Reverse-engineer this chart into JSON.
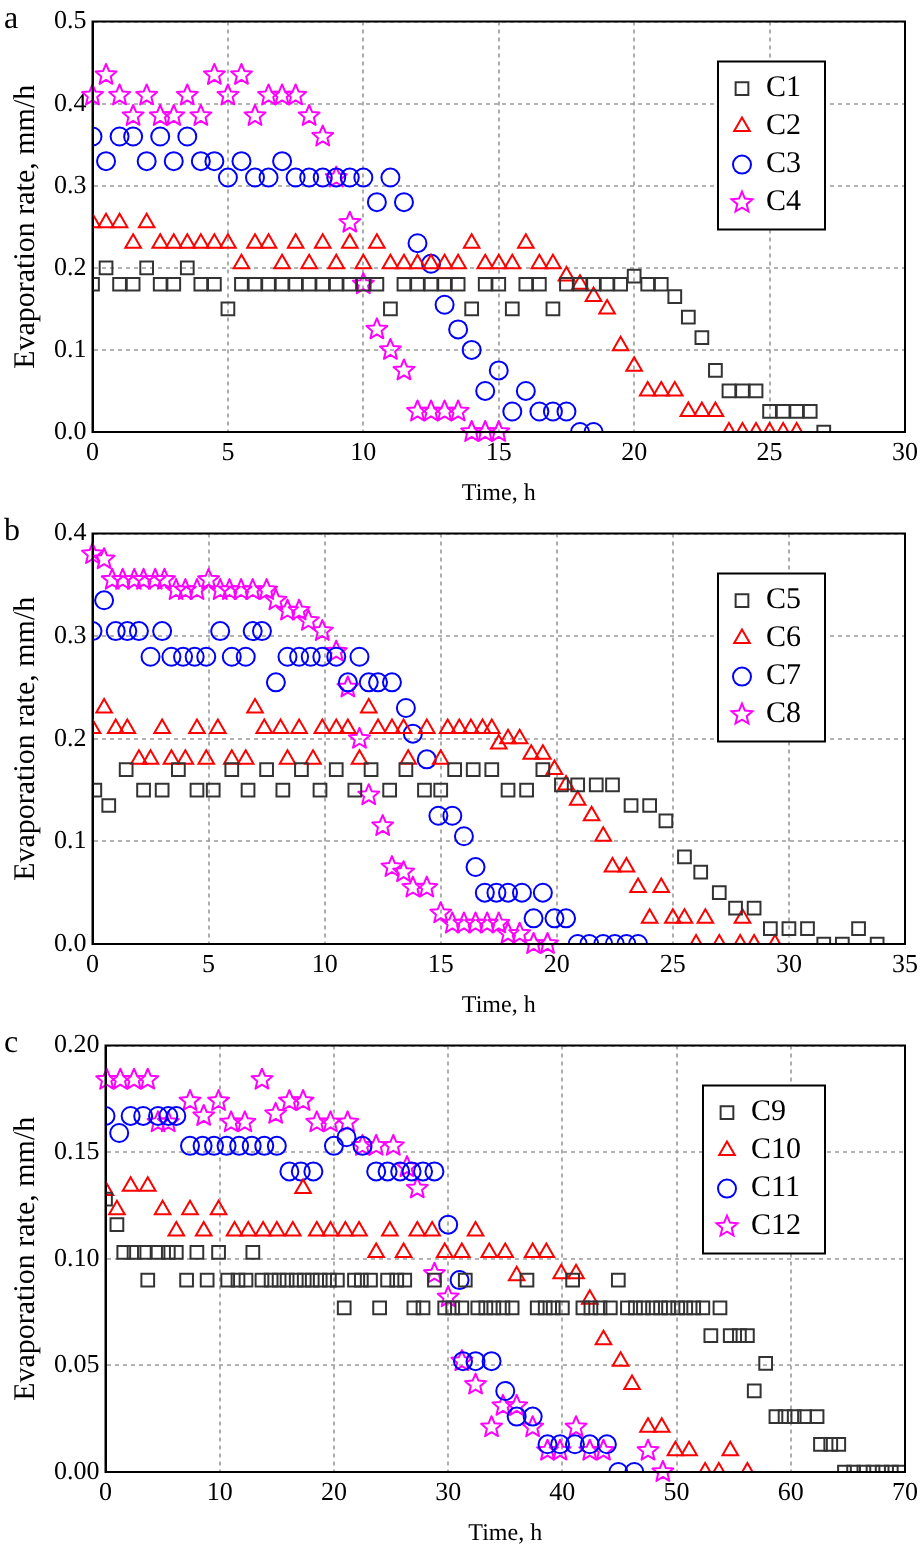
{
  "chart_data": [
    {
      "type": "scatter",
      "annotations": [
        "a"
      ],
      "xlabel": "Time, h",
      "ylabel": "Evaporation rate, mm/h",
      "xlim": [
        0,
        30
      ],
      "xticks": [
        0,
        5,
        10,
        15,
        20,
        25,
        30
      ],
      "ylim": [
        0,
        0.5
      ],
      "yticks": [
        {
          "value": 0,
          "label": "0.0"
        },
        {
          "value": 0.1,
          "label": "0.1"
        },
        {
          "value": 0.2,
          "label": "0.2"
        },
        {
          "value": 0.3,
          "label": "0.3"
        },
        {
          "value": 0.4,
          "label": "0.4"
        },
        {
          "value": 0.5,
          "label": "0.5"
        }
      ],
      "grid": true,
      "legend": "top right",
      "series": [
        {
          "name": "C1",
          "color": "#333333",
          "marker": "square",
          "x": [
            0,
            0.5,
            1,
            1.5,
            2,
            2.5,
            3,
            3.5,
            4,
            4.5,
            5,
            5.5,
            6,
            6.5,
            7,
            7.5,
            8,
            8.5,
            9,
            9.5,
            10,
            10.5,
            11,
            11.5,
            12,
            12.5,
            13,
            13.5,
            14,
            14.5,
            15,
            15.5,
            16,
            16.5,
            17,
            17.5,
            18,
            18.5,
            19,
            19.5,
            20,
            20.5,
            21,
            21.5,
            22,
            22.5,
            23,
            23.5,
            24,
            24.5,
            25,
            25.5,
            26,
            26.5,
            27
          ],
          "values": [
            0.18,
            0.2,
            0.18,
            0.18,
            0.2,
            0.18,
            0.18,
            0.2,
            0.18,
            0.18,
            0.15,
            0.18,
            0.18,
            0.18,
            0.18,
            0.18,
            0.18,
            0.18,
            0.18,
            0.18,
            0.18,
            0.18,
            0.15,
            0.18,
            0.18,
            0.18,
            0.18,
            0.18,
            0.15,
            0.18,
            0.18,
            0.15,
            0.18,
            0.18,
            0.15,
            0.18,
            0.18,
            0.18,
            0.18,
            0.18,
            0.19,
            0.18,
            0.18,
            0.165,
            0.14,
            0.115,
            0.075,
            0.05,
            0.05,
            0.05,
            0.025,
            0.025,
            0.025,
            0.025,
            0
          ]
        },
        {
          "name": "C2",
          "color": "#ff0000",
          "marker": "triangle",
          "x": [
            0,
            0.5,
            1,
            1.5,
            2,
            2.5,
            3,
            3.5,
            4,
            4.5,
            5,
            5.5,
            6,
            6.5,
            7,
            7.5,
            8,
            8.5,
            9,
            9.5,
            10,
            10.5,
            11,
            11.5,
            12,
            12.5,
            13,
            13.5,
            14,
            14.5,
            15,
            15.5,
            16,
            16.5,
            17,
            17.5,
            18,
            18.5,
            19,
            19.5,
            20,
            20.5,
            21,
            21.5,
            22,
            22.5,
            23,
            23.5,
            24,
            24.5,
            25,
            25.5,
            26
          ],
          "values": [
            0.255,
            0.255,
            0.255,
            0.23,
            0.255,
            0.23,
            0.23,
            0.23,
            0.23,
            0.23,
            0.23,
            0.205,
            0.23,
            0.23,
            0.205,
            0.23,
            0.205,
            0.23,
            0.205,
            0.23,
            0.205,
            0.23,
            0.205,
            0.205,
            0.205,
            0.205,
            0.205,
            0.205,
            0.23,
            0.205,
            0.205,
            0.205,
            0.23,
            0.205,
            0.205,
            0.19,
            0.18,
            0.165,
            0.15,
            0.105,
            0.08,
            0.05,
            0.05,
            0.05,
            0.025,
            0.025,
            0.025,
            0,
            0,
            0,
            0,
            0,
            0
          ]
        },
        {
          "name": "C3",
          "color": "#0000ff",
          "marker": "circle",
          "x": [
            0,
            0.5,
            1,
            1.5,
            2,
            2.5,
            3,
            3.5,
            4,
            4.5,
            5,
            5.5,
            6,
            6.5,
            7,
            7.5,
            8,
            8.5,
            9,
            9.5,
            10,
            10.5,
            11,
            11.5,
            12,
            12.5,
            13,
            13.5,
            14,
            14.5,
            15,
            15.5,
            16,
            16.5,
            17,
            17.5,
            18,
            18.5
          ],
          "values": [
            0.36,
            0.33,
            0.36,
            0.36,
            0.33,
            0.36,
            0.33,
            0.36,
            0.33,
            0.33,
            0.31,
            0.33,
            0.31,
            0.31,
            0.33,
            0.31,
            0.31,
            0.31,
            0.31,
            0.31,
            0.31,
            0.28,
            0.31,
            0.28,
            0.23,
            0.205,
            0.155,
            0.125,
            0.1,
            0.05,
            0.075,
            0.025,
            0.05,
            0.025,
            0.025,
            0.025,
            0,
            0
          ]
        },
        {
          "name": "C4",
          "color": "#ff00ff",
          "marker": "star",
          "x": [
            0,
            0.5,
            1,
            1.5,
            2,
            2.5,
            3,
            3.5,
            4,
            4.5,
            5,
            5.5,
            6,
            6.5,
            7,
            7.5,
            8,
            8.5,
            9,
            9.5,
            10,
            10.5,
            11,
            11.5,
            12,
            12.5,
            13,
            13.5,
            14,
            14.5,
            15
          ],
          "values": [
            0.41,
            0.435,
            0.41,
            0.385,
            0.41,
            0.385,
            0.385,
            0.41,
            0.385,
            0.435,
            0.41,
            0.435,
            0.385,
            0.41,
            0.41,
            0.41,
            0.385,
            0.36,
            0.31,
            0.255,
            0.18,
            0.125,
            0.1,
            0.075,
            0.025,
            0.025,
            0.025,
            0.025,
            0,
            0,
            0
          ]
        }
      ]
    },
    {
      "type": "scatter",
      "annotations": [
        "b"
      ],
      "xlabel": "Time, h",
      "ylabel": "Evaporation rate, mm/h",
      "xlim": [
        0,
        35
      ],
      "xticks": [
        0,
        5,
        10,
        15,
        20,
        25,
        30,
        35
      ],
      "ylim": [
        0,
        0.4
      ],
      "yticks": [
        {
          "value": 0,
          "label": "0.0"
        },
        {
          "value": 0.1,
          "label": "0.1"
        },
        {
          "value": 0.2,
          "label": "0.2"
        },
        {
          "value": 0.3,
          "label": "0.3"
        },
        {
          "value": 0.4,
          "label": "0.4"
        }
      ],
      "grid": true,
      "legend": "top right",
      "series": [
        {
          "name": "C5",
          "color": "#333333",
          "marker": "square",
          "x": [
            0.1,
            0.7,
            1.45,
            2.2,
            3,
            3.7,
            4.5,
            5.2,
            6,
            6.7,
            7.5,
            8.2,
            9,
            9.8,
            10.5,
            11.3,
            12,
            12.8,
            13.5,
            14.3,
            15,
            15.6,
            16.4,
            17.2,
            17.9,
            18.7,
            19.4,
            20.2,
            20.9,
            21.7,
            22.4,
            23.2,
            24,
            24.7,
            25.5,
            26.2,
            27,
            27.7,
            28.5,
            29.2,
            30,
            30.8,
            31.5,
            32.3,
            33,
            33.8
          ],
          "values": [
            0.15,
            0.135,
            0.17,
            0.15,
            0.15,
            0.17,
            0.15,
            0.15,
            0.17,
            0.15,
            0.17,
            0.15,
            0.17,
            0.15,
            0.17,
            0.15,
            0.17,
            0.15,
            0.17,
            0.15,
            0.15,
            0.17,
            0.17,
            0.17,
            0.15,
            0.15,
            0.17,
            0.155,
            0.155,
            0.155,
            0.155,
            0.135,
            0.135,
            0.12,
            0.085,
            0.07,
            0.05,
            0.035,
            0.035,
            0.015,
            0.015,
            0.015,
            0,
            0,
            0.015,
            0
          ]
        },
        {
          "name": "C6",
          "color": "#ff0000",
          "marker": "triangle",
          "x": [
            0,
            0.5,
            1,
            1.5,
            2,
            2.5,
            3,
            3.4,
            4,
            4.5,
            4.9,
            5.4,
            6,
            6.6,
            7,
            7.4,
            8.1,
            8.4,
            8.9,
            9.5,
            9.9,
            10.5,
            11,
            11.5,
            11.9,
            12.3,
            12.9,
            13.4,
            13.6,
            14.4,
            15,
            15.3,
            15.8,
            16.3,
            16.8,
            17.2,
            17.5,
            17.9,
            18.4,
            18.9,
            19.4,
            19.9,
            20.4,
            20.9,
            21.5,
            22,
            22.4,
            23,
            23.5,
            24,
            24.5,
            25,
            25.5,
            26,
            26.4,
            27,
            27.9,
            28,
            28.5,
            29.4
          ],
          "values": [
            0.21,
            0.23,
            0.21,
            0.21,
            0.18,
            0.18,
            0.21,
            0.18,
            0.18,
            0.21,
            0.18,
            0.21,
            0.18,
            0.18,
            0.23,
            0.21,
            0.21,
            0.18,
            0.21,
            0.18,
            0.21,
            0.21,
            0.21,
            0.18,
            0.23,
            0.21,
            0.21,
            0.21,
            0.18,
            0.21,
            0.18,
            0.21,
            0.21,
            0.21,
            0.21,
            0.21,
            0.195,
            0.2,
            0.2,
            0.185,
            0.185,
            0.17,
            0.155,
            0.14,
            0.125,
            0.105,
            0.075,
            0.075,
            0.055,
            0.025,
            0.055,
            0.025,
            0.025,
            0,
            0.025,
            0,
            0,
            0.025,
            0,
            0
          ]
        },
        {
          "name": "C7",
          "color": "#0000ff",
          "marker": "circle",
          "x": [
            0,
            0.5,
            1,
            1.5,
            2,
            2.5,
            3,
            3.4,
            3.9,
            4.4,
            4.9,
            5.5,
            6,
            6.6,
            6.9,
            7.3,
            7.9,
            8.4,
            8.9,
            9.4,
            9.9,
            10.5,
            11,
            11.5,
            11.9,
            12.3,
            12.9,
            13.5,
            13.8,
            14.4,
            14.9,
            15.5,
            16,
            16.5,
            16.9,
            17.4,
            17.9,
            18.5,
            19,
            19.4,
            19.9,
            20.4,
            20.9,
            21.4,
            22,
            22.5,
            23,
            23.5
          ],
          "values": [
            0.305,
            0.335,
            0.305,
            0.305,
            0.305,
            0.28,
            0.305,
            0.28,
            0.28,
            0.28,
            0.28,
            0.305,
            0.28,
            0.28,
            0.305,
            0.305,
            0.255,
            0.28,
            0.28,
            0.28,
            0.28,
            0.28,
            0.255,
            0.28,
            0.255,
            0.255,
            0.255,
            0.23,
            0.205,
            0.18,
            0.125,
            0.125,
            0.105,
            0.075,
            0.05,
            0.05,
            0.05,
            0.05,
            0.025,
            0.05,
            0.025,
            0.025,
            0,
            0,
            0,
            0,
            0,
            0
          ]
        },
        {
          "name": "C8",
          "color": "#ff00ff",
          "marker": "star",
          "x": [
            0,
            0.5,
            0.85,
            1.3,
            1.8,
            2.2,
            2.7,
            3.1,
            3.6,
            4,
            4.5,
            5,
            5.5,
            5.9,
            6.4,
            6.9,
            7.5,
            7.9,
            8.4,
            8.9,
            9.3,
            9.9,
            10.5,
            11,
            11.5,
            11.9,
            12.5,
            12.9,
            13.4,
            13.8,
            14.4,
            15,
            15.5,
            16,
            16.5,
            17,
            17.5,
            17.9,
            18.4,
            19,
            19.6
          ],
          "values": [
            0.38,
            0.375,
            0.355,
            0.355,
            0.355,
            0.355,
            0.355,
            0.355,
            0.345,
            0.345,
            0.345,
            0.355,
            0.345,
            0.345,
            0.345,
            0.345,
            0.345,
            0.335,
            0.325,
            0.325,
            0.315,
            0.305,
            0.285,
            0.25,
            0.2,
            0.145,
            0.115,
            0.075,
            0.07,
            0.055,
            0.055,
            0.03,
            0.02,
            0.02,
            0.02,
            0.02,
            0.02,
            0.01,
            0.01,
            0,
            0
          ]
        }
      ]
    },
    {
      "type": "scatter",
      "annotations": [
        "c"
      ],
      "xlabel": "Time, h",
      "ylabel": "Evaporation rate, mm/h",
      "xlim": [
        0,
        70
      ],
      "xticks": [
        0,
        10,
        20,
        30,
        40,
        50,
        60,
        70
      ],
      "ylim": [
        0,
        0.2
      ],
      "yticks": [
        {
          "value": 0,
          "label": "0.00"
        },
        {
          "value": 0.05,
          "label": "0.05"
        },
        {
          "value": 0.1,
          "label": "0.10"
        },
        {
          "value": 0.15,
          "label": "0.15"
        },
        {
          "value": 0.2,
          "label": "0.20"
        }
      ],
      "grid": true,
      "legend": "top right",
      "series": [
        {
          "name": "C9",
          "color": "#333333",
          "marker": "square",
          "x": [
            0,
            1,
            1.6,
            2.5,
            3.4,
            3.7,
            4.6,
            5.5,
            6.2,
            7.1,
            8,
            8.9,
            9.9,
            10.7,
            11.6,
            12.3,
            12.9,
            13.7,
            14.5,
            15.2,
            15.9,
            16.7,
            17.4,
            18.1,
            18.8,
            19.6,
            20.3,
            20.9,
            21.8,
            22.4,
            23.2,
            24,
            24.7,
            25.5,
            26.2,
            27,
            27.8,
            28.8,
            29.7,
            30.4,
            31.2,
            31.5,
            32.6,
            33.3,
            34,
            34.8,
            35.6,
            36.9,
            37.8,
            38.5,
            39.2,
            40,
            40.9,
            41.8,
            42.5,
            43.3,
            44.2,
            44.9,
            45.7,
            46.4,
            47.1,
            47.9,
            48.6,
            49.3,
            50.1,
            50.8,
            51.5,
            52.3,
            53,
            53.8,
            54.7,
            55.5,
            56.2,
            56.8,
            57.8,
            58.7,
            59.5,
            60.3,
            61.2,
            62.3,
            62.6,
            63.5,
            64.2,
            64.7,
            65.5,
            66.4,
            67.2,
            68,
            68.8,
            69.5
          ],
          "values": [
            0.128,
            0.116,
            0.103,
            0.103,
            0.103,
            0.09,
            0.103,
            0.103,
            0.103,
            0.09,
            0.103,
            0.09,
            0.103,
            0.09,
            0.09,
            0.09,
            0.103,
            0.09,
            0.09,
            0.09,
            0.09,
            0.09,
            0.09,
            0.09,
            0.09,
            0.09,
            0.09,
            0.077,
            0.09,
            0.09,
            0.09,
            0.077,
            0.09,
            0.09,
            0.09,
            0.077,
            0.077,
            0.09,
            0.077,
            0.077,
            0.077,
            0.09,
            0.077,
            0.077,
            0.077,
            0.077,
            0.077,
            0.09,
            0.077,
            0.077,
            0.077,
            0.077,
            0.09,
            0.077,
            0.077,
            0.077,
            0.077,
            0.09,
            0.077,
            0.077,
            0.077,
            0.077,
            0.077,
            0.077,
            0.077,
            0.077,
            0.077,
            0.077,
            0.064,
            0.077,
            0.064,
            0.064,
            0.064,
            0.038,
            0.051,
            0.026,
            0.026,
            0.026,
            0.026,
            0.026,
            0.013,
            0.013,
            0.013,
            0,
            0,
            0,
            0,
            0,
            0,
            0
          ]
        },
        {
          "name": "C10",
          "color": "#ff0000",
          "marker": "triangle",
          "x": [
            0,
            1,
            2.2,
            3.7,
            5,
            6.2,
            7.4,
            8.6,
            9.9,
            11.3,
            12.5,
            13.8,
            15,
            16.4,
            17.3,
            18.5,
            19.7,
            21,
            22.2,
            23.7,
            24.9,
            26.1,
            27.3,
            28.6,
            29.7,
            31.2,
            32.4,
            33.6,
            35,
            36,
            37.4,
            38.6,
            39.9,
            41.2,
            42.4,
            43.6,
            45.1,
            46.1,
            47.5,
            48.7,
            49.9,
            51.1,
            52.5,
            53.7,
            54.7,
            56.2
          ],
          "values": [
            0.132,
            0.123,
            0.134,
            0.134,
            0.123,
            0.113,
            0.123,
            0.113,
            0.123,
            0.113,
            0.113,
            0.113,
            0.113,
            0.113,
            0.133,
            0.113,
            0.113,
            0.113,
            0.113,
            0.103,
            0.113,
            0.103,
            0.113,
            0.113,
            0.103,
            0.103,
            0.113,
            0.103,
            0.103,
            0.092,
            0.103,
            0.103,
            0.093,
            0.093,
            0.081,
            0.062,
            0.052,
            0.041,
            0.021,
            0.021,
            0.01,
            0.01,
            0,
            0,
            0.01,
            0
          ]
        },
        {
          "name": "C11",
          "color": "#0000ff",
          "marker": "circle",
          "x": [
            0,
            1.2,
            2.2,
            3.3,
            4.6,
            5.5,
            6.2,
            7.4,
            8.5,
            9.5,
            10.6,
            11.7,
            12.8,
            13.9,
            15,
            16.1,
            17.1,
            18.2,
            20,
            21.1,
            22.5,
            23.7,
            24.7,
            25.8,
            26.8,
            27.8,
            28.8,
            30,
            31,
            31.3,
            32.4,
            33.8,
            35,
            36,
            37.4,
            38.7,
            39.8,
            41.1,
            42.4,
            43.9,
            44.9,
            46.3
          ],
          "values": [
            0.167,
            0.159,
            0.167,
            0.167,
            0.167,
            0.167,
            0.167,
            0.153,
            0.153,
            0.153,
            0.153,
            0.153,
            0.153,
            0.153,
            0.153,
            0.141,
            0.141,
            0.141,
            0.153,
            0.157,
            0.153,
            0.141,
            0.141,
            0.141,
            0.141,
            0.141,
            0.141,
            0.116,
            0.09,
            0.052,
            0.052,
            0.052,
            0.038,
            0.026,
            0.026,
            0.013,
            0.013,
            0.013,
            0.013,
            0.013,
            0,
            0
          ]
        },
        {
          "name": "C12",
          "color": "#ff00ff",
          "marker": "star",
          "x": [
            0.1,
            1.3,
            2.5,
            3.7,
            4.6,
            5.5,
            7.4,
            8.6,
            9.9,
            11,
            12.2,
            13.7,
            14.9,
            16.1,
            17.3,
            18.5,
            19.7,
            21.2,
            22.5,
            23.7,
            25.2,
            26.4,
            27.3,
            28.8,
            30,
            31.2,
            32.4,
            33.8,
            34.8,
            36,
            37.4,
            38.7,
            39.8,
            41.2,
            42.4,
            43.6,
            47.5,
            48.8
          ],
          "values": [
            0.184,
            0.184,
            0.184,
            0.184,
            0.164,
            0.164,
            0.174,
            0.167,
            0.174,
            0.164,
            0.164,
            0.184,
            0.168,
            0.174,
            0.174,
            0.164,
            0.164,
            0.164,
            0.153,
            0.153,
            0.153,
            0.143,
            0.133,
            0.093,
            0.082,
            0.052,
            0.041,
            0.021,
            0.031,
            0.031,
            0.021,
            0.01,
            0.01,
            0.021,
            0.01,
            0.01,
            0.01,
            0
          ]
        }
      ]
    }
  ]
}
